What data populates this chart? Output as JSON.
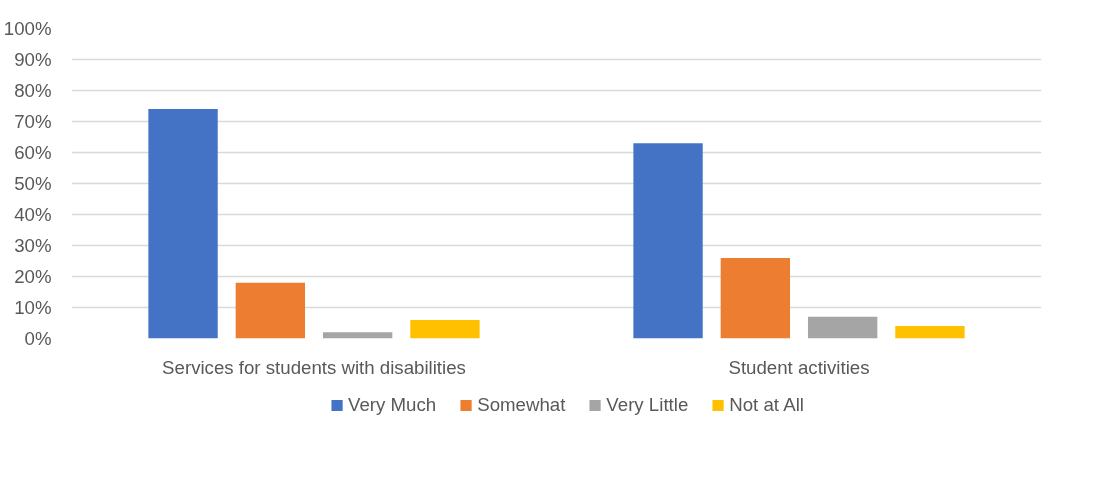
{
  "chart_data": {
    "type": "bar",
    "categories": [
      "Services for students with disabilities",
      "Student activities"
    ],
    "series": [
      {
        "name": "Very Much",
        "color": "#4472c4",
        "values": [
          74,
          63
        ]
      },
      {
        "name": "Somewhat",
        "color": "#ed7d31",
        "values": [
          18,
          26
        ]
      },
      {
        "name": "Very Little",
        "color": "#a5a5a5",
        "values": [
          2,
          7
        ]
      },
      {
        "name": "Not at All",
        "color": "#ffc000",
        "values": [
          6,
          4
        ]
      }
    ],
    "ylim": [
      0,
      100
    ],
    "yticks": [
      {
        "value": 0,
        "label": "0%"
      },
      {
        "value": 10,
        "label": "10%"
      },
      {
        "value": 20,
        "label": "20%"
      },
      {
        "value": 30,
        "label": "30%"
      },
      {
        "value": 40,
        "label": "40%"
      },
      {
        "value": 50,
        "label": "50%"
      },
      {
        "value": 60,
        "label": "60%"
      },
      {
        "value": 70,
        "label": "70%"
      },
      {
        "value": 80,
        "label": "80%"
      },
      {
        "value": 90,
        "label": "90%"
      },
      {
        "value": 100,
        "label": "100%"
      }
    ],
    "grid": "y",
    "legend": "bottom"
  }
}
